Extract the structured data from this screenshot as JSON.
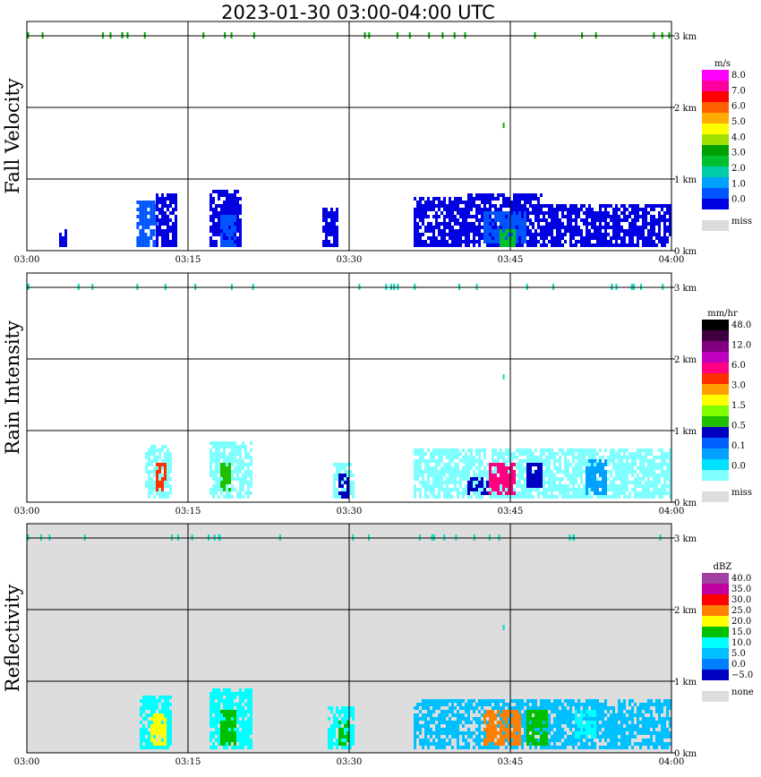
{
  "title": "2023-01-30   03:00-04:00 UTC",
  "x_tick_labels": [
    "03:00",
    "03:15",
    "03:30",
    "03:45",
    "04:00"
  ],
  "y_tick_labels": [
    "0 km",
    "1 km",
    "2 km",
    "3 km"
  ],
  "chart_data": [
    {
      "type": "heatmap",
      "title": "Fall Velocity",
      "xlabel": "",
      "ylabel": "Fall Velocity",
      "xlim": [
        "03:00",
        "04:00"
      ],
      "ylim_km": [
        0,
        3.2
      ],
      "grid": true,
      "legend": {
        "unit": "m/s",
        "placement": "right",
        "colors": [
          "#0000e0",
          "#0055ff",
          "#00a0ff",
          "#00ccaa",
          "#00c030",
          "#00a000",
          "#a0e000",
          "#ffff00",
          "#ffaa00",
          "#ff6000",
          "#ff0000",
          "#ff00a0",
          "#ff00ff"
        ],
        "labels": [
          "8.0",
          "7.0",
          "6.0",
          "5.0",
          "4.0",
          "3.0",
          "2.0",
          "1.0",
          "0.0"
        ],
        "miss_label": "miss",
        "miss_color": "#dddddd"
      },
      "background": "#ffffff",
      "echoes": [
        {
          "t": [
            3.0,
            3.6
          ],
          "z": [
            0.05,
            0.3
          ],
          "level": 0
        },
        {
          "t": [
            10.2,
            12.0
          ],
          "z": [
            0.05,
            0.7
          ],
          "level": 1
        },
        {
          "t": [
            12.0,
            14.0
          ],
          "z": [
            0.05,
            0.8
          ],
          "level": 0
        },
        {
          "t": [
            17.0,
            20.0
          ],
          "z": [
            0.05,
            0.85
          ],
          "level": 0
        },
        {
          "t": [
            18.0,
            19.5
          ],
          "z": [
            0.05,
            0.5
          ],
          "level": 1
        },
        {
          "t": [
            27.5,
            29.0
          ],
          "z": [
            0.05,
            0.6
          ],
          "level": 0
        },
        {
          "t": [
            36.0,
            41.0
          ],
          "z": [
            0.05,
            0.75
          ],
          "level": 0
        },
        {
          "t": [
            41.0,
            48.0
          ],
          "z": [
            0.05,
            0.8
          ],
          "level": 0
        },
        {
          "t": [
            42.5,
            46.5
          ],
          "z": [
            0.1,
            0.55
          ],
          "level": 1
        },
        {
          "t": [
            44.0,
            45.5
          ],
          "z": [
            0.05,
            0.3
          ],
          "level": 4
        },
        {
          "t": [
            48.0,
            60.0
          ],
          "z": [
            0.05,
            0.65
          ],
          "level": 0
        }
      ]
    },
    {
      "type": "heatmap",
      "title": "Rain Intensity",
      "xlabel": "",
      "ylabel": "Rain Intensity",
      "xlim": [
        "03:00",
        "04:00"
      ],
      "ylim_km": [
        0,
        3.2
      ],
      "grid": true,
      "legend": {
        "unit": "mm/hr",
        "placement": "right",
        "colors": [
          "#80ffff",
          "#00e0ff",
          "#00a0ff",
          "#0060ff",
          "#0000c0",
          "#20c000",
          "#80ff00",
          "#ffff00",
          "#ffa000",
          "#ff3000",
          "#ff0080",
          "#c000c0",
          "#800080",
          "#400040",
          "#000000"
        ],
        "labels": [
          "48.0",
          "12.0",
          "6.0",
          "3.0",
          "1.5",
          "0.5",
          "0.1",
          "0.0"
        ],
        "miss_label": "miss",
        "miss_color": "#dddddd"
      },
      "background": "#ffffff",
      "echoes": [
        {
          "t": [
            11.0,
            13.5
          ],
          "z": [
            0.05,
            0.8
          ],
          "level": 0
        },
        {
          "t": [
            12.0,
            13.0
          ],
          "z": [
            0.15,
            0.55
          ],
          "level": 9
        },
        {
          "t": [
            17.0,
            21.0
          ],
          "z": [
            0.05,
            0.85
          ],
          "level": 0
        },
        {
          "t": [
            18.0,
            19.0
          ],
          "z": [
            0.15,
            0.55
          ],
          "level": 5
        },
        {
          "t": [
            28.5,
            30.5
          ],
          "z": [
            0.05,
            0.55
          ],
          "level": 0
        },
        {
          "t": [
            29.0,
            29.8
          ],
          "z": [
            0.05,
            0.4
          ],
          "level": 4
        },
        {
          "t": [
            36.0,
            60.0
          ],
          "z": [
            0.05,
            0.75
          ],
          "level": 0
        },
        {
          "t": [
            41.0,
            43.0
          ],
          "z": [
            0.1,
            0.35
          ],
          "level": 4
        },
        {
          "t": [
            43.0,
            45.5
          ],
          "z": [
            0.1,
            0.55
          ],
          "level": 10
        },
        {
          "t": [
            46.5,
            48.0
          ],
          "z": [
            0.2,
            0.55
          ],
          "level": 4
        },
        {
          "t": [
            52.0,
            54.0
          ],
          "z": [
            0.1,
            0.6
          ],
          "level": 2
        }
      ]
    },
    {
      "type": "heatmap",
      "title": "Reflectivity",
      "xlabel": "",
      "ylabel": "Reflectivity",
      "xlim": [
        "03:00",
        "04:00"
      ],
      "ylim_km": [
        0,
        3.2
      ],
      "grid": true,
      "legend": {
        "unit": "dBZ",
        "placement": "right",
        "colors": [
          "#0000c0",
          "#0080ff",
          "#00c0ff",
          "#00ffff",
          "#00c000",
          "#ffff00",
          "#ff8000",
          "#ff0000",
          "#c000a0",
          "#a040a0"
        ],
        "labels": [
          "40.0",
          "35.0",
          "30.0",
          "25.0",
          "20.0",
          "15.0",
          "10.0",
          "5.0",
          "0.0",
          "−5.0"
        ],
        "none_label": "none",
        "none_color": "#dddddd"
      },
      "background": "#dddddd",
      "echoes": [
        {
          "t": [
            10.5,
            13.5
          ],
          "z": [
            0.05,
            0.8
          ],
          "level": 3
        },
        {
          "t": [
            11.5,
            13.0
          ],
          "z": [
            0.1,
            0.55
          ],
          "level": 5
        },
        {
          "t": [
            17.0,
            21.0
          ],
          "z": [
            0.05,
            0.9
          ],
          "level": 3
        },
        {
          "t": [
            18.0,
            19.5
          ],
          "z": [
            0.1,
            0.6
          ],
          "level": 4
        },
        {
          "t": [
            28.0,
            30.5
          ],
          "z": [
            0.05,
            0.65
          ],
          "level": 3
        },
        {
          "t": [
            29.0,
            30.0
          ],
          "z": [
            0.1,
            0.45
          ],
          "level": 4
        },
        {
          "t": [
            36.0,
            60.0
          ],
          "z": [
            0.05,
            0.75
          ],
          "level": 2
        },
        {
          "t": [
            42.5,
            46.0
          ],
          "z": [
            0.1,
            0.6
          ],
          "level": 6
        },
        {
          "t": [
            46.5,
            48.5
          ],
          "z": [
            0.1,
            0.6
          ],
          "level": 4
        },
        {
          "t": [
            51.0,
            53.0
          ],
          "z": [
            0.2,
            0.6
          ],
          "level": 3
        }
      ]
    }
  ]
}
